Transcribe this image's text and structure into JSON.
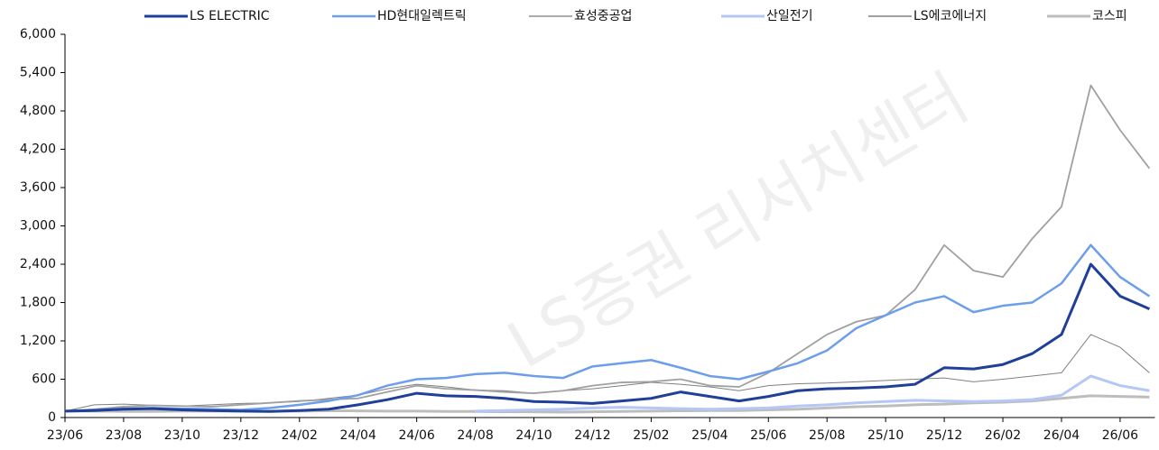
{
  "chart_data": {
    "type": "line",
    "watermark": "LS증권 리서치센터",
    "categories": [
      "23/06",
      null,
      "23/08",
      null,
      "23/10",
      null,
      "23/12",
      null,
      "24/02",
      null,
      "24/04",
      null,
      "24/06",
      null,
      "24/08",
      null,
      "24/10",
      null,
      "24/12",
      null,
      "25/02",
      null,
      "25/04",
      null,
      "25/06",
      null,
      "25/08",
      null,
      "25/10",
      null,
      "25/12",
      null,
      "26/02",
      null,
      "26/04",
      null,
      "26/06",
      null
    ],
    "series": [
      {
        "name": "LS ELECTRIC",
        "color": "#1f3f99",
        "width": 3,
        "values": [
          100,
          110,
          130,
          140,
          120,
          110,
          100,
          95,
          110,
          130,
          200,
          280,
          380,
          340,
          330,
          300,
          250,
          240,
          220,
          260,
          300,
          400,
          330,
          260,
          330,
          420,
          450,
          460,
          480,
          520,
          780,
          760,
          830,
          1000,
          1300,
          2400,
          1900,
          1700
        ]
      },
      {
        "name": "HD현대일렉트릭",
        "color": "#6d9eeb",
        "width": 2.5,
        "values": [
          100,
          120,
          140,
          150,
          140,
          130,
          120,
          150,
          200,
          260,
          350,
          500,
          600,
          620,
          680,
          700,
          650,
          620,
          800,
          850,
          900,
          780,
          650,
          600,
          720,
          850,
          1050,
          1400,
          1600,
          1800,
          1900,
          1650,
          1750,
          1800,
          2100,
          2700,
          2200,
          1900
        ]
      },
      {
        "name": "효성중공업",
        "color": "#a0a0a0",
        "width": 1.8,
        "values": [
          100,
          130,
          170,
          190,
          180,
          170,
          200,
          230,
          260,
          280,
          300,
          400,
          500,
          450,
          430,
          400,
          380,
          420,
          500,
          550,
          560,
          600,
          500,
          480,
          700,
          1000,
          1300,
          1500,
          1600,
          2000,
          2700,
          2300,
          2200,
          2800,
          3300,
          5200,
          4500,
          3900
        ]
      },
      {
        "name": "산일전기",
        "color": "#b4c7f5",
        "width": 3,
        "values": [
          null,
          null,
          null,
          null,
          null,
          null,
          null,
          null,
          null,
          null,
          null,
          null,
          null,
          null,
          100,
          110,
          120,
          130,
          150,
          160,
          150,
          140,
          130,
          140,
          150,
          180,
          200,
          230,
          250,
          270,
          260,
          250,
          260,
          280,
          350,
          650,
          500,
          420
        ]
      },
      {
        "name": "LS에코에너지",
        "color": "#808080",
        "width": 1,
        "values": [
          100,
          200,
          210,
          190,
          180,
          200,
          220,
          230,
          250,
          300,
          350,
          450,
          520,
          480,
          430,
          420,
          380,
          420,
          450,
          500,
          550,
          520,
          480,
          420,
          500,
          530,
          540,
          560,
          580,
          600,
          620,
          560,
          600,
          650,
          700,
          1300,
          1100,
          700
        ]
      },
      {
        "name": "코스피",
        "color": "#bdbdbd",
        "width": 3,
        "values": [
          100,
          100,
          95,
          95,
          100,
          100,
          100,
          100,
          100,
          105,
          105,
          100,
          100,
          95,
          95,
          90,
          90,
          85,
          90,
          95,
          100,
          105,
          110,
          110,
          120,
          130,
          150,
          170,
          180,
          200,
          210,
          230,
          240,
          260,
          300,
          340,
          330,
          320
        ]
      }
    ],
    "ylim": [
      0,
      6000
    ],
    "yticks": [
      0,
      600,
      {
        "value": 1200,
        "label": "1,200"
      },
      {
        "value": 1800,
        "label": "1,800"
      },
      {
        "value": 2400,
        "label": "2,400"
      },
      {
        "value": 3000,
        "label": "3,000"
      },
      {
        "value": 3600,
        "label": "3,600"
      },
      {
        "value": 4200,
        "label": "4,200"
      },
      {
        "value": 4800,
        "label": "4,800"
      },
      {
        "value": 5400,
        "label": "5,400"
      },
      {
        "value": 6000,
        "label": "6,000"
      }
    ]
  }
}
